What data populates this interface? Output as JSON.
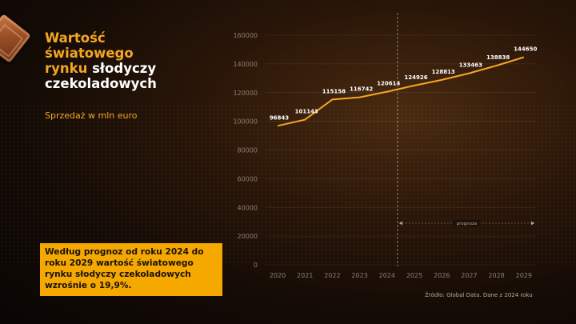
{
  "title_parts": [
    {
      "text": "Wartość",
      "accent": true
    },
    {
      "text": "światowego",
      "accent": true
    },
    {
      "text": "rynku",
      "accent": true,
      "suffix": " słodyczy"
    },
    {
      "text": "czekoladowych",
      "accent": false
    }
  ],
  "title_accent_1": "Wartość",
  "title_accent_2": "światowego",
  "title_accent_3": "rynku",
  "title_white_1": " słodyczy",
  "title_white_2": "czekoladowych",
  "subtitle": "Sprzedaż w mln euro",
  "callout": "Według prognoz od roku 2024 do roku 2029 wartość światowego rynku słodyczy czekoladowych wzrośnie o 19,9%.",
  "source": "Źródło: Global Data. Dane z 2024 roku",
  "colors": {
    "accent": "#f5a623",
    "line": "#f5a623",
    "callout_bg": "#f5a800",
    "background": "#1a0e06"
  },
  "chart_data": {
    "type": "line",
    "x": [
      2020,
      2021,
      2022,
      2023,
      2024,
      2025,
      2026,
      2027,
      2028,
      2029
    ],
    "categories": [
      "2020",
      "2021",
      "2022",
      "2023",
      "2024",
      "2025",
      "2026",
      "2027",
      "2028",
      "2029"
    ],
    "values": [
      96843,
      101143,
      115158,
      116742,
      120614,
      124926,
      128813,
      133463,
      138838,
      144650
    ],
    "data_labels": [
      "96843",
      "101143",
      "115158",
      "116742",
      "120614",
      "124926",
      "128813",
      "133463",
      "138838",
      "144650"
    ],
    "ylim": [
      0,
      160000
    ],
    "yticks": [
      "0",
      "20000",
      "40000",
      "60000",
      "80000",
      "100000",
      "120000",
      "140000",
      "160000"
    ],
    "ytick_values": [
      0,
      20000,
      40000,
      60000,
      80000,
      100000,
      120000,
      140000,
      160000
    ],
    "grid": true,
    "forecast_from": 2024,
    "forecast_label": "prognoza"
  }
}
